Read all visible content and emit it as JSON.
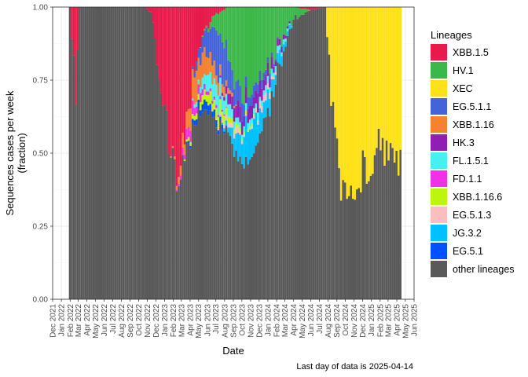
{
  "chart_data": {
    "type": "bar",
    "stacked": true,
    "xlabel": "Date",
    "ylabel": [
      "Sequences cases per week",
      "(fraction)"
    ],
    "ylim": [
      0,
      1
    ],
    "yticks": [
      "0.00",
      "0.25",
      "0.50",
      "0.75",
      "1.00"
    ],
    "x_range": [
      "2021-12-01",
      "2025-06-01"
    ],
    "xticks": [
      "Dec 2021",
      "Jan 2022",
      "Feb 2022",
      "Mar 2022",
      "Apr 2022",
      "May 2022",
      "Jun 2022",
      "Jul 2022",
      "Aug 2022",
      "Sep 2022",
      "Oct 2022",
      "Nov 2022",
      "Dec 2022",
      "Jan 2023",
      "Feb 2023",
      "Mar 2023",
      "Apr 2023",
      "May 2023",
      "Jun 2023",
      "Jul 2023",
      "Aug 2023",
      "Sep 2023",
      "Oct 2023",
      "Nov 2023",
      "Dec 2023",
      "Jan 2024",
      "Feb 2024",
      "Mar 2024",
      "Apr 2024",
      "May 2024",
      "Jun 2024",
      "Jul 2024",
      "Aug 2024",
      "Sep 2024",
      "Oct 2024",
      "Nov 2024",
      "Dec 2024",
      "Jan 2025",
      "Feb 2025",
      "Mar 2025",
      "Apr 2025",
      "May 2025",
      "Jun 2025"
    ],
    "grid": true,
    "legend_title": "Lineages",
    "legend_position": "right",
    "caption": "Last day of data is 2025-04-14",
    "series": [
      {
        "name": "XBB.1.5",
        "color": "#E8194B"
      },
      {
        "name": "HV.1",
        "color": "#3CB84A"
      },
      {
        "name": "XEC",
        "color": "#FFE119"
      },
      {
        "name": "EG.5.1.1",
        "color": "#4363D8"
      },
      {
        "name": "XBB.1.16",
        "color": "#F58231"
      },
      {
        "name": "HK.3",
        "color": "#911EB4"
      },
      {
        "name": "FL.1.5.1",
        "color": "#46F0F0"
      },
      {
        "name": "FD.1.1",
        "color": "#F032E6"
      },
      {
        "name": "XBB.1.16.6",
        "color": "#BCF60C"
      },
      {
        "name": "EG.5.1.3",
        "color": "#FABEBE"
      },
      {
        "name": "JG.3.2",
        "color": "#00C0FF"
      },
      {
        "name": "EG.5.1",
        "color": "#0050FF"
      },
      {
        "name": "other lineages",
        "color": "#595959"
      }
    ],
    "week_start": "2022-01-31",
    "week_end": "2025-04-14",
    "data_keyframes": [
      {
        "week": "2022-01-31",
        "other lineages": 1.0
      },
      {
        "week": "2022-02-21",
        "other lineages": 0.72,
        "XBB.1.5": 0.28
      },
      {
        "week": "2022-03-07",
        "other lineages": 1.0
      },
      {
        "week": "2022-10-24",
        "other lineages": 1.0
      },
      {
        "week": "2022-11-14",
        "other lineages": 0.98,
        "XBB.1.5": 0.02
      },
      {
        "week": "2022-12-12",
        "other lineages": 0.78,
        "XBB.1.5": 0.22
      },
      {
        "week": "2023-01-16",
        "other lineages": 0.55,
        "XBB.1.5": 0.45
      },
      {
        "week": "2023-02-06",
        "other lineages": 0.41,
        "XBB.1.5": 0.58,
        "XBB.1.16": 0.01
      },
      {
        "week": "2023-03-06",
        "other lineages": 0.46,
        "XBB.1.5": 0.48,
        "XBB.1.16": 0.04,
        "FD.1.1": 0.02
      },
      {
        "week": "2023-04-03",
        "other lineages": 0.55,
        "XBB.1.5": 0.3,
        "XBB.1.16": 0.08,
        "FD.1.1": 0.04,
        "EG.5.1": 0.01,
        "XBB.1.16.6": 0.02
      },
      {
        "week": "2023-05-01",
        "other lineages": 0.62,
        "XBB.1.5": 0.14,
        "XBB.1.16": 0.1,
        "FD.1.1": 0.03,
        "EG.5.1": 0.03,
        "EG.5.1.1": 0.04,
        "FL.1.5.1": 0.02,
        "XBB.1.16.6": 0.02
      },
      {
        "week": "2023-06-05",
        "other lineages": 0.64,
        "XBB.1.5": 0.06,
        "XBB.1.16": 0.07,
        "EG.5.1.1": 0.1,
        "FL.1.5.1": 0.05,
        "XBB.1.16.6": 0.03,
        "HV.1": 0.01,
        "EG.5.1": 0.03,
        "FD.1.1": 0.01
      },
      {
        "week": "2023-07-10",
        "other lineages": 0.6,
        "XBB.1.5": 0.02,
        "XBB.1.16": 0.04,
        "EG.5.1.1": 0.14,
        "FL.1.5.1": 0.06,
        "XBB.1.16.6": 0.04,
        "HV.1": 0.06,
        "EG.5.1": 0.02,
        "FD.1.1": 0.01,
        "EG.5.1.3": 0.01
      },
      {
        "week": "2023-08-14",
        "other lineages": 0.58,
        "EG.5.1.1": 0.1,
        "FL.1.5.1": 0.04,
        "XBB.1.16": 0.02,
        "XBB.1.16.6": 0.02,
        "HV.1": 0.17,
        "HK.3": 0.03,
        "EG.5.1.3": 0.02,
        "JG.3.2": 0.02
      },
      {
        "week": "2023-09-18",
        "other lineages": 0.48,
        "EG.5.1.1": 0.06,
        "HV.1": 0.28,
        "HK.3": 0.05,
        "JG.3.2": 0.08,
        "FL.1.5.1": 0.02,
        "EG.5.1.3": 0.02,
        "XBB.1.16.6": 0.01
      },
      {
        "week": "2023-10-23",
        "other lineages": 0.48,
        "HV.1": 0.28,
        "HK.3": 0.05,
        "JG.3.2": 0.12,
        "EG.5.1.1": 0.04,
        "FL.1.5.1": 0.02,
        "XBB.1.16.6": 0.01
      },
      {
        "week": "2023-11-27",
        "other lineages": 0.52,
        "HV.1": 0.28,
        "JG.3.2": 0.08,
        "HK.3": 0.05,
        "EG.5.1.1": 0.03,
        "FL.1.5.1": 0.02,
        "EG.5.1.3": 0.02
      },
      {
        "week": "2024-01-01",
        "other lineages": 0.62,
        "HV.1": 0.22,
        "JG.3.2": 0.06,
        "HK.3": 0.04,
        "EG.5.1.1": 0.02,
        "FL.1.5.1": 0.02,
        "EG.5.1.3": 0.02
      },
      {
        "week": "2024-02-12",
        "other lineages": 0.8,
        "HV.1": 0.12,
        "JG.3.2": 0.04,
        "HK.3": 0.02,
        "FL.1.5.1": 0.02
      },
      {
        "week": "2024-04-01",
        "other lineages": 0.96,
        "HV.1": 0.04
      },
      {
        "week": "2024-06-03",
        "other lineages": 0.99,
        "XBB.1.5": 0.01
      },
      {
        "week": "2024-07-22",
        "other lineages": 1.0
      },
      {
        "week": "2024-08-12",
        "other lineages": 0.7,
        "XEC": 0.3
      },
      {
        "week": "2024-09-09",
        "other lineages": 0.4,
        "XEC": 0.6
      },
      {
        "week": "2024-10-07",
        "other lineages": 0.3,
        "XEC": 0.7
      },
      {
        "week": "2024-11-04",
        "other lineages": 0.37,
        "XEC": 0.63
      },
      {
        "week": "2024-12-16",
        "other lineages": 0.45,
        "XEC": 0.55
      },
      {
        "week": "2025-01-27",
        "other lineages": 0.5,
        "XEC": 0.5
      },
      {
        "week": "2025-03-03",
        "other lineages": 0.45,
        "XEC": 0.55
      },
      {
        "week": "2025-04-14",
        "other lineages": 0.46,
        "XEC": 0.54
      }
    ]
  }
}
